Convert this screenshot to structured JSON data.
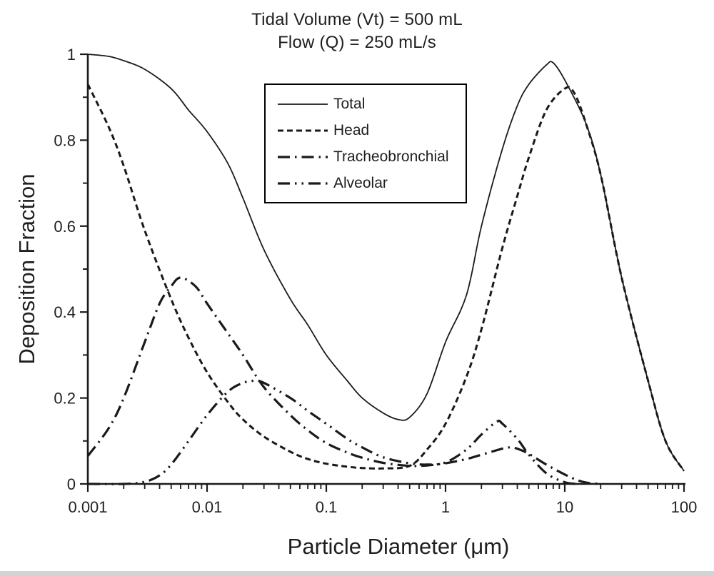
{
  "chart_data": {
    "type": "line",
    "title_line1": "Tidal Volume (Vt) = 500 mL",
    "title_line2": "Flow (Q) = 250 mL/s",
    "xlabel": "Particle Diameter (μm)",
    "ylabel": "Deposition Fraction",
    "x_scale": "log",
    "xlim": [
      0.001,
      100
    ],
    "ylim": [
      0,
      1
    ],
    "grid": false,
    "legend_position": "upper-center",
    "line_color": "#1a1a1a",
    "axis_color": "#1a1a1a",
    "x_ticks": {
      "values": [
        0.001,
        0.01,
        0.1,
        1,
        10,
        100
      ],
      "labels": [
        "0.001",
        "0.01",
        "0.1",
        "1",
        "10",
        "100"
      ]
    },
    "y_ticks": {
      "values": [
        0,
        0.2,
        0.4,
        0.6,
        0.8,
        1
      ],
      "labels": [
        "0",
        "0.2",
        "0.4",
        "0.6",
        "0.8",
        "1"
      ]
    },
    "y_minor_ticks": [
      0.1,
      0.3,
      0.5,
      0.7,
      0.9
    ],
    "series": [
      {
        "name": "Total",
        "dash": "solid",
        "width": 1.8,
        "x": [
          0.001,
          0.0015,
          0.002,
          0.003,
          0.005,
          0.007,
          0.01,
          0.015,
          0.02,
          0.03,
          0.05,
          0.07,
          0.1,
          0.15,
          0.2,
          0.3,
          0.4,
          0.5,
          0.7,
          1,
          1.5,
          2,
          3,
          4,
          5,
          7,
          8,
          10,
          15,
          20,
          30,
          50,
          70,
          100
        ],
        "y": [
          1.0,
          0.995,
          0.985,
          0.965,
          0.92,
          0.87,
          0.82,
          0.745,
          0.665,
          0.545,
          0.43,
          0.37,
          0.3,
          0.24,
          0.2,
          0.165,
          0.15,
          0.155,
          0.21,
          0.33,
          0.44,
          0.6,
          0.78,
          0.88,
          0.93,
          0.975,
          0.98,
          0.94,
          0.84,
          0.72,
          0.48,
          0.24,
          0.1,
          0.03
        ]
      },
      {
        "name": "Head",
        "dash": "dash",
        "width": 3,
        "x": [
          0.001,
          0.0015,
          0.002,
          0.003,
          0.005,
          0.007,
          0.01,
          0.015,
          0.02,
          0.03,
          0.05,
          0.07,
          0.1,
          0.15,
          0.2,
          0.3,
          0.5,
          0.7,
          1,
          1.5,
          2,
          3,
          4,
          5,
          7,
          10,
          12,
          15,
          20,
          30,
          50,
          70,
          100
        ],
        "y": [
          0.93,
          0.83,
          0.74,
          0.59,
          0.43,
          0.34,
          0.26,
          0.19,
          0.15,
          0.11,
          0.075,
          0.058,
          0.047,
          0.04,
          0.037,
          0.036,
          0.042,
          0.08,
          0.14,
          0.25,
          0.36,
          0.55,
          0.67,
          0.76,
          0.87,
          0.92,
          0.91,
          0.84,
          0.72,
          0.48,
          0.24,
          0.1,
          0.03
        ]
      },
      {
        "name": "Tracheobronchial",
        "dash": "dash-dot",
        "width": 3.2,
        "x": [
          0.001,
          0.0015,
          0.002,
          0.003,
          0.004,
          0.005,
          0.006,
          0.008,
          0.01,
          0.015,
          0.02,
          0.03,
          0.05,
          0.07,
          0.1,
          0.15,
          0.2,
          0.3,
          0.5,
          0.7,
          1,
          1.5,
          2,
          3,
          3.5,
          4,
          5,
          7,
          10,
          13,
          16,
          20
        ],
        "y": [
          0.065,
          0.13,
          0.2,
          0.33,
          0.42,
          0.46,
          0.48,
          0.46,
          0.42,
          0.35,
          0.3,
          0.225,
          0.16,
          0.125,
          0.095,
          0.073,
          0.061,
          0.049,
          0.042,
          0.043,
          0.048,
          0.058,
          0.068,
          0.082,
          0.085,
          0.082,
          0.07,
          0.045,
          0.022,
          0.008,
          0.002,
          0.0
        ]
      },
      {
        "name": "Alveolar",
        "dash": "dash-dot-dot",
        "width": 3.2,
        "x": [
          0.001,
          0.002,
          0.003,
          0.004,
          0.005,
          0.007,
          0.01,
          0.015,
          0.02,
          0.025,
          0.03,
          0.05,
          0.07,
          0.1,
          0.15,
          0.2,
          0.3,
          0.5,
          0.7,
          1,
          1.5,
          2,
          2.7,
          3,
          4,
          5,
          7,
          10,
          13
        ],
        "y": [
          0.0,
          0.0,
          0.005,
          0.02,
          0.045,
          0.1,
          0.16,
          0.215,
          0.235,
          0.24,
          0.235,
          0.2,
          0.17,
          0.14,
          0.105,
          0.085,
          0.062,
          0.048,
          0.045,
          0.05,
          0.08,
          0.115,
          0.145,
          0.14,
          0.105,
          0.068,
          0.025,
          0.004,
          0.0
        ]
      }
    ]
  }
}
